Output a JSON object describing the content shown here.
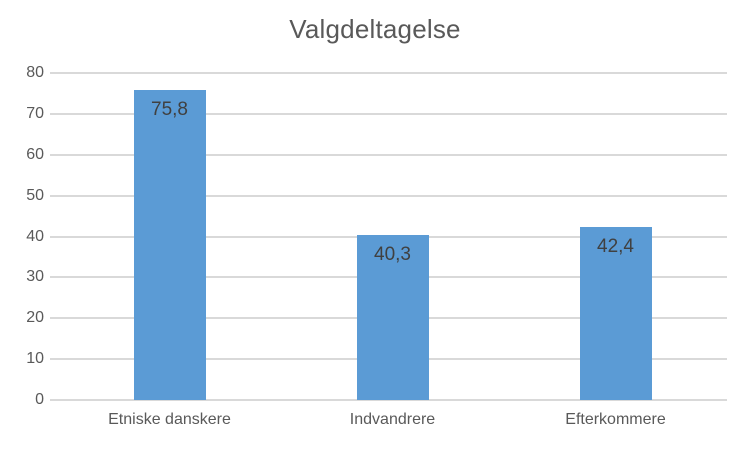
{
  "chart_data": {
    "type": "bar",
    "title": "Valgdeltagelse",
    "categories": [
      "Etniske danskere",
      "Indvandrere",
      "Efterkommere"
    ],
    "values": [
      75.8,
      40.3,
      42.4
    ],
    "value_labels": [
      "75,8",
      "40,3",
      "42,4"
    ],
    "xlabel": "",
    "ylabel": "",
    "ylim": [
      0,
      80
    ],
    "yticks": [
      0,
      10,
      20,
      30,
      40,
      50,
      60,
      70,
      80
    ],
    "grid": "horizontal",
    "legend_position": "none",
    "colors": {
      "bar_fill": "#5B9BD5",
      "gridline": "#D9D9D9",
      "title_text": "#595959",
      "axis_tick_text": "#595959",
      "category_text": "#595959",
      "value_label_text": "#404040",
      "background": "#ffffff"
    }
  }
}
